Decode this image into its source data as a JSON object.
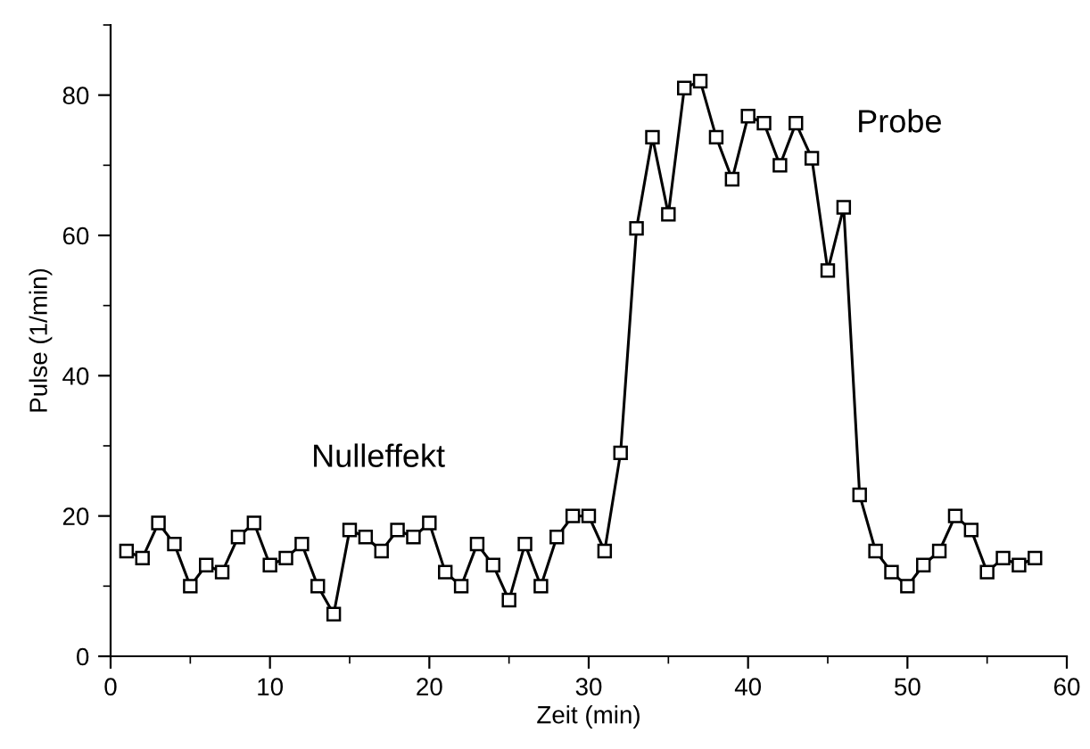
{
  "chart_data": {
    "type": "line",
    "xlabel": "Zeit (min)",
    "ylabel": "Pulse (1/min)",
    "x": [
      1,
      2,
      3,
      4,
      5,
      6,
      7,
      8,
      9,
      10,
      11,
      12,
      13,
      14,
      15,
      16,
      17,
      18,
      19,
      20,
      21,
      22,
      23,
      24,
      25,
      26,
      27,
      28,
      29,
      30,
      31,
      32,
      33,
      34,
      35,
      36,
      37,
      38,
      39,
      40,
      41,
      42,
      43,
      44,
      45,
      46,
      47,
      48,
      49,
      50,
      51,
      52,
      53,
      54,
      55,
      56,
      57,
      58
    ],
    "series": [
      {
        "color": "#000000",
        "values": [
          15,
          14,
          19,
          16,
          10,
          13,
          12,
          17,
          19,
          13,
          14,
          16,
          10,
          6,
          18,
          17,
          15,
          18,
          17,
          19,
          12,
          10,
          16,
          13,
          8,
          16,
          10,
          17,
          20,
          20,
          15,
          29,
          61,
          74,
          63,
          81,
          82,
          74,
          68,
          77,
          76,
          70,
          76,
          71,
          55,
          64,
          23,
          15,
          12,
          10,
          13,
          15,
          20,
          18,
          12,
          14,
          13,
          14
        ]
      }
    ],
    "marker": "square",
    "line_style": "solid",
    "xlim": [
      0,
      60
    ],
    "ylim": [
      0,
      90
    ],
    "xticks": [
      0,
      10,
      20,
      30,
      40,
      50,
      60
    ],
    "yticks": [
      0,
      20,
      40,
      60,
      80
    ],
    "grid": false,
    "legend": false,
    "annotations": [
      "Nulleffekt",
      "Probe"
    ]
  }
}
